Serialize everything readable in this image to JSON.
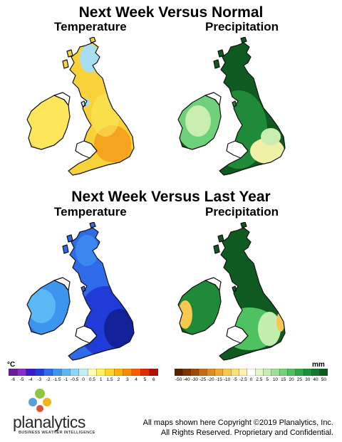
{
  "panels": {
    "normal": {
      "title": "Next Week Versus Normal",
      "temperature": "Temperature",
      "precipitation": "Precipitation"
    },
    "last_year": {
      "title": "Next Week Versus Last Year",
      "temperature": "Temperature",
      "precipitation": "Precipitation"
    }
  },
  "legend": {
    "temperature": {
      "unit": "°C",
      "labels": [
        "-6",
        "-5",
        "-4",
        "-3",
        "-2",
        "-1.5",
        "-1",
        "-0.5",
        "0",
        "0.5",
        "1",
        "1.5",
        "2",
        "3",
        "4",
        "5",
        "6"
      ],
      "colors": [
        "#6a1a9a",
        "#8a2bd0",
        "#3a1ad0",
        "#1f3cd8",
        "#2f6ae8",
        "#3e95ef",
        "#5cb8f2",
        "#8fd6f4",
        "#c6ecf6",
        "#fffbb0",
        "#fff060",
        "#ffd52a",
        "#ffb000",
        "#ff8a00",
        "#ff5a00",
        "#e02a00",
        "#b01000"
      ]
    },
    "precipitation": {
      "unit": "mm",
      "labels": [
        "-50",
        "-40",
        "-30",
        "-25",
        "-20",
        "-15",
        "-10",
        "-5",
        "-2.5",
        "0",
        "2.5",
        "5",
        "10",
        "15",
        "20",
        "25",
        "30",
        "40",
        "50"
      ],
      "colors": [
        "#5a2000",
        "#7a3500",
        "#a04a00",
        "#c86a10",
        "#e08a20",
        "#f0a830",
        "#f8c850",
        "#fbe07a",
        "#fdf2b0",
        "#ffffff",
        "#e4f6c8",
        "#c4edb0",
        "#9ee09a",
        "#74d27a",
        "#4ec260",
        "#2eaa48",
        "#1a9238",
        "#0f7a2c",
        "#0a5a1e"
      ]
    }
  },
  "colors": {
    "temp_normal": [
      "#f7d23a",
      "#fce75a",
      "#f5a41e",
      "#a8ddf2"
    ],
    "precip_normal": [
      "#0f5a20",
      "#1f8a38",
      "#6fd27a",
      "#c9eeb0",
      "#f0f0a8"
    ],
    "temp_last_year": [
      "#2f6ae8",
      "#1f3cd8",
      "#3e95ef",
      "#5cb8f2",
      "#13219a"
    ],
    "precip_last_year": [
      "#0f5a20",
      "#1f8a38",
      "#4ec260",
      "#c4edb0",
      "#f8c850"
    ]
  },
  "brand": {
    "name": "planalytics",
    "tagline": "BUSINESS WEATHER INTELLIGENCE"
  },
  "copyright": {
    "line1": "All maps shown here Copyright ©2019 Planalytics, Inc.",
    "line2": "All Rights Reserved. Proprietary and Confidential."
  }
}
